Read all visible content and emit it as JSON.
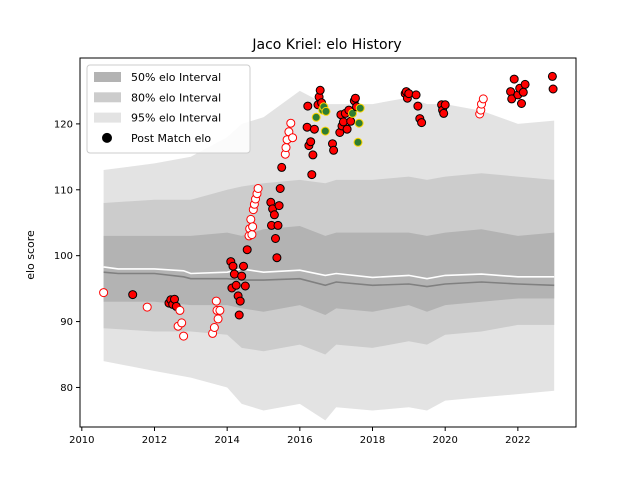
{
  "chart_data": {
    "type": "scatter",
    "title": "Jaco Kriel: elo History",
    "xlabel": "",
    "ylabel": "elo score",
    "xlim": [
      2009.95,
      2023.6
    ],
    "ylim": [
      74,
      130
    ],
    "xticks": [
      2010,
      2012,
      2014,
      2016,
      2018,
      2020,
      2022
    ],
    "yticks": [
      80,
      90,
      100,
      110,
      120
    ],
    "legend_position": "top-left",
    "legend": [
      {
        "label": "50% elo Interval",
        "kind": "band",
        "color": "#b3b3b3"
      },
      {
        "label": "80% elo Interval",
        "kind": "band",
        "color": "#cccccc"
      },
      {
        "label": "95% elo Interval",
        "kind": "band",
        "color": "#e3e3e3"
      },
      {
        "label": "Post Match elo",
        "kind": "marker",
        "color": "#000000"
      }
    ],
    "colors": {
      "band95": "#e3e3e3",
      "band80": "#cccccc",
      "band50": "#b3b3b3",
      "median_line": "#808080",
      "mean_line": "#ffffff",
      "win_fill": "#ff0000",
      "win_edge": "#000000",
      "loss_fill": "#ffffff",
      "loss_edge": "#ff0000",
      "draw_fill": "#2e7d32",
      "draw_edge": "#ffd700"
    },
    "series": [
      {
        "name": "95% elo Interval",
        "type": "band",
        "x": [
          2010.6,
          2012.0,
          2013.0,
          2014.0,
          2014.4,
          2015.0,
          2016.0,
          2016.7,
          2017.0,
          2018.0,
          2019.0,
          2019.5,
          2020.0,
          2021.0,
          2022.0,
          2023.0
        ],
        "lower": [
          84.0,
          82.5,
          81.5,
          80.0,
          77.5,
          76.5,
          77.5,
          75.0,
          77.0,
          76.5,
          77.0,
          76.5,
          78.0,
          78.5,
          79.0,
          79.5
        ],
        "upper": [
          113.0,
          114.0,
          115.0,
          118.0,
          120.0,
          121.0,
          125.0,
          123.0,
          123.0,
          123.0,
          124.0,
          123.0,
          123.0,
          122.0,
          120.0,
          120.5
        ]
      },
      {
        "name": "80% elo Interval",
        "type": "band",
        "x": [
          2010.6,
          2012.0,
          2013.0,
          2014.0,
          2014.4,
          2015.0,
          2016.0,
          2016.7,
          2017.0,
          2018.0,
          2019.0,
          2019.5,
          2020.0,
          2021.0,
          2022.0,
          2023.0
        ],
        "lower": [
          89.0,
          88.5,
          88.5,
          88.0,
          86.0,
          85.5,
          86.5,
          85.0,
          86.5,
          86.0,
          87.0,
          86.5,
          88.0,
          88.5,
          89.5,
          89.5
        ],
        "upper": [
          108.0,
          108.5,
          108.5,
          110.0,
          110.5,
          111.0,
          111.5,
          111.0,
          111.5,
          111.5,
          112.0,
          111.5,
          112.0,
          112.5,
          112.0,
          111.5
        ]
      },
      {
        "name": "50% elo Interval",
        "type": "band",
        "x": [
          2010.6,
          2012.0,
          2013.0,
          2014.0,
          2014.4,
          2015.0,
          2016.0,
          2016.7,
          2017.0,
          2018.0,
          2019.0,
          2019.5,
          2020.0,
          2021.0,
          2022.0,
          2023.0
        ],
        "lower": [
          93.0,
          93.0,
          92.5,
          92.5,
          92.0,
          91.5,
          92.5,
          91.0,
          92.0,
          91.5,
          92.5,
          91.5,
          92.5,
          93.0,
          93.5,
          93.5
        ],
        "upper": [
          103.0,
          103.0,
          103.0,
          103.5,
          103.0,
          104.0,
          104.5,
          103.0,
          103.5,
          103.5,
          103.5,
          103.0,
          103.5,
          104.0,
          103.0,
          103.5
        ]
      },
      {
        "name": "median",
        "type": "line",
        "color": "#808080",
        "x": [
          2010.6,
          2011.0,
          2012.0,
          2012.8,
          2013.0,
          2014.0,
          2014.4,
          2015.0,
          2016.0,
          2016.7,
          2017.0,
          2018.0,
          2019.0,
          2019.5,
          2020.0,
          2021.0,
          2022.0,
          2023.0
        ],
        "y": [
          97.5,
          97.3,
          97.3,
          96.8,
          96.5,
          96.5,
          96.3,
          96.3,
          96.5,
          95.5,
          96.0,
          95.5,
          95.7,
          95.3,
          95.7,
          96.0,
          95.7,
          95.5
        ]
      },
      {
        "name": "mean",
        "type": "line",
        "color": "#ffffff",
        "x": [
          2010.6,
          2011.0,
          2012.0,
          2012.8,
          2013.0,
          2014.0,
          2014.4,
          2015.0,
          2016.0,
          2016.7,
          2017.0,
          2018.0,
          2019.0,
          2019.5,
          2020.0,
          2021.0,
          2022.0,
          2023.0
        ],
        "y": [
          98.3,
          98.0,
          98.0,
          97.7,
          97.3,
          97.5,
          98.0,
          97.5,
          97.8,
          97.0,
          97.3,
          96.7,
          97.0,
          96.5,
          97.0,
          97.2,
          96.8,
          96.8
        ]
      },
      {
        "name": "Post Match elo",
        "type": "scatter",
        "points": [
          {
            "x": 2010.6,
            "y": 94.4,
            "r": "L"
          },
          {
            "x": 2011.4,
            "y": 94.1,
            "r": "W"
          },
          {
            "x": 2011.8,
            "y": 92.2,
            "r": "L"
          },
          {
            "x": 2012.4,
            "y": 92.8,
            "r": "W"
          },
          {
            "x": 2012.45,
            "y": 93.3,
            "r": "W"
          },
          {
            "x": 2012.5,
            "y": 92.6,
            "r": "W"
          },
          {
            "x": 2012.55,
            "y": 93.4,
            "r": "W"
          },
          {
            "x": 2012.6,
            "y": 92.3,
            "r": "W"
          },
          {
            "x": 2012.65,
            "y": 89.3,
            "r": "L"
          },
          {
            "x": 2012.7,
            "y": 91.7,
            "r": "L"
          },
          {
            "x": 2012.75,
            "y": 89.8,
            "r": "L"
          },
          {
            "x": 2012.8,
            "y": 87.8,
            "r": "L"
          },
          {
            "x": 2013.6,
            "y": 88.2,
            "r": "L"
          },
          {
            "x": 2013.65,
            "y": 89.1,
            "r": "L"
          },
          {
            "x": 2013.7,
            "y": 93.1,
            "r": "L"
          },
          {
            "x": 2013.72,
            "y": 91.7,
            "r": "L"
          },
          {
            "x": 2013.75,
            "y": 90.4,
            "r": "L"
          },
          {
            "x": 2013.8,
            "y": 91.7,
            "r": "L"
          },
          {
            "x": 2014.1,
            "y": 99.1,
            "r": "W"
          },
          {
            "x": 2014.13,
            "y": 95.1,
            "r": "W"
          },
          {
            "x": 2014.16,
            "y": 98.4,
            "r": "W"
          },
          {
            "x": 2014.2,
            "y": 97.2,
            "r": "W"
          },
          {
            "x": 2014.25,
            "y": 95.5,
            "r": "W"
          },
          {
            "x": 2014.3,
            "y": 93.9,
            "r": "W"
          },
          {
            "x": 2014.33,
            "y": 91.0,
            "r": "W"
          },
          {
            "x": 2014.36,
            "y": 93.1,
            "r": "W"
          },
          {
            "x": 2014.4,
            "y": 96.9,
            "r": "W"
          },
          {
            "x": 2014.45,
            "y": 98.4,
            "r": "W"
          },
          {
            "x": 2014.5,
            "y": 95.4,
            "r": "W"
          },
          {
            "x": 2014.55,
            "y": 100.9,
            "r": "W"
          },
          {
            "x": 2014.6,
            "y": 103.0,
            "r": "L"
          },
          {
            "x": 2014.62,
            "y": 104.1,
            "r": "L"
          },
          {
            "x": 2014.65,
            "y": 105.5,
            "r": "L"
          },
          {
            "x": 2014.68,
            "y": 103.2,
            "r": "L"
          },
          {
            "x": 2014.7,
            "y": 104.4,
            "r": "L"
          },
          {
            "x": 2014.72,
            "y": 107.0,
            "r": "L"
          },
          {
            "x": 2014.75,
            "y": 107.8,
            "r": "L"
          },
          {
            "x": 2014.78,
            "y": 108.6,
            "r": "L"
          },
          {
            "x": 2014.82,
            "y": 109.4,
            "r": "L"
          },
          {
            "x": 2014.85,
            "y": 110.2,
            "r": "L"
          },
          {
            "x": 2015.2,
            "y": 108.1,
            "r": "W"
          },
          {
            "x": 2015.22,
            "y": 104.6,
            "r": "W"
          },
          {
            "x": 2015.25,
            "y": 107.1,
            "r": "W"
          },
          {
            "x": 2015.3,
            "y": 106.2,
            "r": "W"
          },
          {
            "x": 2015.33,
            "y": 102.6,
            "r": "W"
          },
          {
            "x": 2015.37,
            "y": 99.7,
            "r": "W"
          },
          {
            "x": 2015.4,
            "y": 104.6,
            "r": "W"
          },
          {
            "x": 2015.43,
            "y": 107.6,
            "r": "W"
          },
          {
            "x": 2015.46,
            "y": 110.2,
            "r": "W"
          },
          {
            "x": 2015.5,
            "y": 113.4,
            "r": "W"
          },
          {
            "x": 2015.6,
            "y": 115.4,
            "r": "L"
          },
          {
            "x": 2015.62,
            "y": 116.4,
            "r": "L"
          },
          {
            "x": 2015.65,
            "y": 117.6,
            "r": "L"
          },
          {
            "x": 2015.7,
            "y": 118.8,
            "r": "L"
          },
          {
            "x": 2015.75,
            "y": 120.1,
            "r": "L"
          },
          {
            "x": 2015.8,
            "y": 117.9,
            "r": "L"
          },
          {
            "x": 2016.2,
            "y": 119.5,
            "r": "W"
          },
          {
            "x": 2016.22,
            "y": 122.7,
            "r": "W"
          },
          {
            "x": 2016.25,
            "y": 116.7,
            "r": "W"
          },
          {
            "x": 2016.3,
            "y": 117.3,
            "r": "W"
          },
          {
            "x": 2016.33,
            "y": 112.3,
            "r": "W"
          },
          {
            "x": 2016.36,
            "y": 115.3,
            "r": "W"
          },
          {
            "x": 2016.4,
            "y": 119.2,
            "r": "W"
          },
          {
            "x": 2016.45,
            "y": 121.0,
            "r": "D"
          },
          {
            "x": 2016.5,
            "y": 122.9,
            "r": "W"
          },
          {
            "x": 2016.53,
            "y": 124.1,
            "r": "W"
          },
          {
            "x": 2016.56,
            "y": 125.1,
            "r": "W"
          },
          {
            "x": 2016.6,
            "y": 123.2,
            "r": "W"
          },
          {
            "x": 2016.63,
            "y": 122.1,
            "r": "D"
          },
          {
            "x": 2016.66,
            "y": 122.6,
            "r": "D"
          },
          {
            "x": 2016.7,
            "y": 118.9,
            "r": "D"
          },
          {
            "x": 2016.72,
            "y": 121.9,
            "r": "D"
          },
          {
            "x": 2016.9,
            "y": 117.0,
            "r": "W"
          },
          {
            "x": 2016.93,
            "y": 116.0,
            "r": "W"
          },
          {
            "x": 2017.1,
            "y": 118.7,
            "r": "W"
          },
          {
            "x": 2017.13,
            "y": 121.4,
            "r": "W"
          },
          {
            "x": 2017.16,
            "y": 119.7,
            "r": "W"
          },
          {
            "x": 2017.2,
            "y": 120.3,
            "r": "W"
          },
          {
            "x": 2017.25,
            "y": 121.6,
            "r": "W"
          },
          {
            "x": 2017.3,
            "y": 119.2,
            "r": "W"
          },
          {
            "x": 2017.35,
            "y": 122.1,
            "r": "W"
          },
          {
            "x": 2017.4,
            "y": 120.4,
            "r": "W"
          },
          {
            "x": 2017.45,
            "y": 121.6,
            "r": "D"
          },
          {
            "x": 2017.5,
            "y": 123.5,
            "r": "W"
          },
          {
            "x": 2017.53,
            "y": 123.9,
            "r": "W"
          },
          {
            "x": 2017.56,
            "y": 122.6,
            "r": "W"
          },
          {
            "x": 2017.6,
            "y": 117.2,
            "r": "D"
          },
          {
            "x": 2017.63,
            "y": 120.1,
            "r": "D"
          },
          {
            "x": 2017.66,
            "y": 122.4,
            "r": "D"
          },
          {
            "x": 2018.9,
            "y": 124.6,
            "r": "W"
          },
          {
            "x": 2018.93,
            "y": 124.9,
            "r": "W"
          },
          {
            "x": 2018.96,
            "y": 123.9,
            "r": "W"
          },
          {
            "x": 2019.0,
            "y": 124.6,
            "r": "W"
          },
          {
            "x": 2019.2,
            "y": 124.4,
            "r": "W"
          },
          {
            "x": 2019.25,
            "y": 122.7,
            "r": "W"
          },
          {
            "x": 2019.3,
            "y": 120.8,
            "r": "W"
          },
          {
            "x": 2019.35,
            "y": 120.2,
            "r": "W"
          },
          {
            "x": 2019.9,
            "y": 122.9,
            "r": "W"
          },
          {
            "x": 2019.93,
            "y": 122.1,
            "r": "W"
          },
          {
            "x": 2019.96,
            "y": 121.6,
            "r": "W"
          },
          {
            "x": 2020.0,
            "y": 122.9,
            "r": "W"
          },
          {
            "x": 2020.95,
            "y": 121.5,
            "r": "L"
          },
          {
            "x": 2020.98,
            "y": 122.1,
            "r": "L"
          },
          {
            "x": 2021.0,
            "y": 123.0,
            "r": "L"
          },
          {
            "x": 2021.05,
            "y": 123.8,
            "r": "L"
          },
          {
            "x": 2021.8,
            "y": 124.9,
            "r": "W"
          },
          {
            "x": 2021.83,
            "y": 123.8,
            "r": "W"
          },
          {
            "x": 2021.9,
            "y": 126.8,
            "r": "W"
          },
          {
            "x": 2022.0,
            "y": 124.4,
            "r": "W"
          },
          {
            "x": 2022.05,
            "y": 125.4,
            "r": "W"
          },
          {
            "x": 2022.1,
            "y": 123.1,
            "r": "W"
          },
          {
            "x": 2022.15,
            "y": 124.8,
            "r": "W"
          },
          {
            "x": 2022.2,
            "y": 126.0,
            "r": "W"
          },
          {
            "x": 2022.95,
            "y": 127.2,
            "r": "W"
          },
          {
            "x": 2022.97,
            "y": 125.3,
            "r": "W"
          }
        ]
      }
    ]
  }
}
